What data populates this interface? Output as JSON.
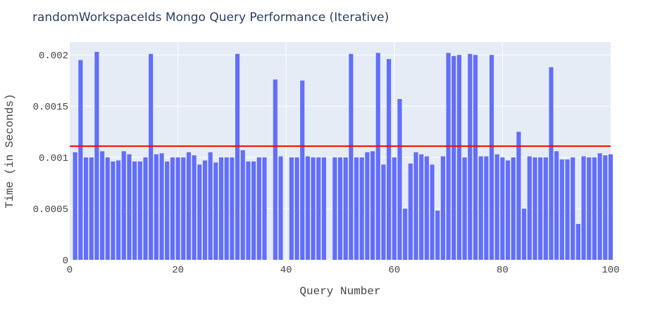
{
  "chart_data": {
    "type": "bar",
    "title": "randomWorkspaceIds Mongo Query Performance (Iterative)",
    "xlabel": "Query Number",
    "ylabel": "Time (in Seconds)",
    "xlim": [
      0,
      100
    ],
    "ylim": [
      0,
      0.002125
    ],
    "xticks": [
      0,
      20,
      40,
      60,
      80,
      100
    ],
    "xtick_labels": [
      "0",
      "20",
      "40",
      "60",
      "80",
      "100"
    ],
    "yticks": [
      0,
      0.0005,
      0.001,
      0.0015,
      0.002
    ],
    "ytick_labels": [
      "0",
      "0.0005",
      "0.001",
      "0.0015",
      "0.002"
    ],
    "grid": true,
    "bar_color": "#636efa",
    "reference_line": {
      "y": 0.00111,
      "color": "#ff0000"
    },
    "x": [
      1,
      2,
      3,
      4,
      5,
      6,
      7,
      8,
      9,
      10,
      11,
      12,
      13,
      14,
      15,
      16,
      17,
      18,
      19,
      20,
      21,
      22,
      23,
      24,
      25,
      26,
      27,
      28,
      29,
      30,
      31,
      32,
      33,
      34,
      35,
      36,
      37,
      38,
      39,
      40,
      41,
      42,
      43,
      44,
      45,
      46,
      47,
      48,
      49,
      50,
      51,
      52,
      53,
      54,
      55,
      56,
      57,
      58,
      59,
      60,
      61,
      62,
      63,
      64,
      65,
      66,
      67,
      68,
      69,
      70,
      71,
      72,
      73,
      74,
      75,
      76,
      77,
      78,
      79,
      80,
      81,
      82,
      83,
      84,
      85,
      86,
      87,
      88,
      89,
      90,
      91,
      92,
      93,
      94,
      95,
      96,
      97,
      98,
      99,
      100
    ],
    "values": [
      0.00105,
      0.00195,
      0.001,
      0.001,
      0.00203,
      0.00106,
      0.001,
      0.00096,
      0.00097,
      0.00106,
      0.00103,
      0.00096,
      0.00096,
      0.001,
      0.00201,
      0.00103,
      0.00104,
      0.00096,
      0.001,
      0.001,
      0.001,
      0.00105,
      0.00102,
      0.00093,
      0.00097,
      0.00105,
      0.00095,
      0.001,
      0.001,
      0.001,
      0.00201,
      0.00107,
      0.00096,
      0.00096,
      0.001,
      0.001,
      0,
      0.00176,
      0.00101,
      0,
      0.001,
      0.001,
      0.00175,
      0.00101,
      0.001,
      0.001,
      0.001,
      0,
      0.001,
      0.001,
      0.001,
      0.00201,
      0.001,
      0.001,
      0.00105,
      0.00106,
      0.00202,
      0.00093,
      0.00196,
      0.001,
      0.00157,
      0.0005,
      0.00094,
      0.00105,
      0.00103,
      0.00101,
      0.00093,
      0.00048,
      0.00101,
      0.00202,
      0.00199,
      0.002,
      0.001,
      0.00201,
      0.002,
      0.00101,
      0.00101,
      0.002,
      0.00103,
      0.001,
      0.00097,
      0.001,
      0.00125,
      0.0005,
      0.00101,
      0.001,
      0.001,
      0.001,
      0.00188,
      0.00106,
      0.00098,
      0.00098,
      0.001,
      0.00035,
      0.00101,
      0.001,
      0.001,
      0.00104,
      0.00102,
      0.00103
    ]
  }
}
